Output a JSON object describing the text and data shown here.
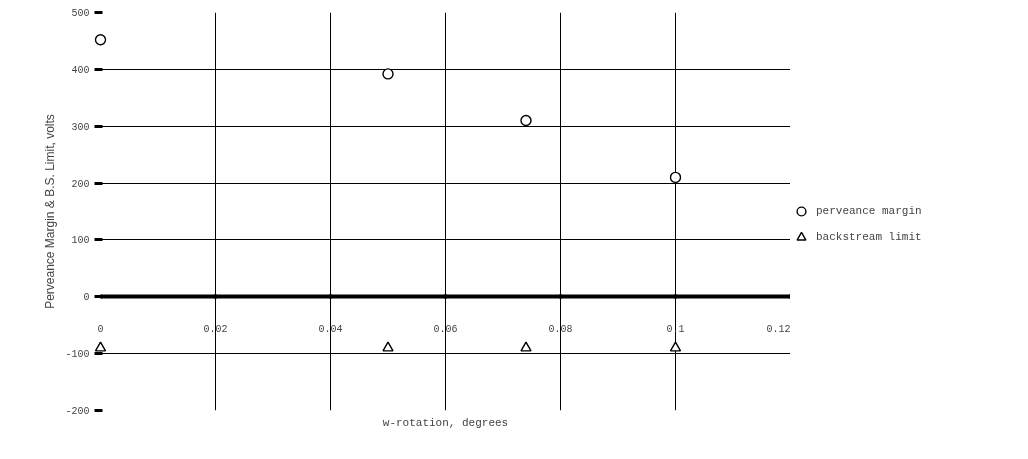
{
  "chart_data": {
    "type": "scatter",
    "xlabel": "w-rotation, degrees",
    "ylabel": "Perveance Margin & B.S. Limit, volts",
    "x": [
      0,
      0.05,
      0.074,
      0.1
    ],
    "series": [
      {
        "name": "perveance margin",
        "color": "#000000",
        "marker": "circle",
        "values": [
          452,
          392,
          310,
          210
        ]
      },
      {
        "name": "backstream limit",
        "color": "#000000",
        "marker": "triangle",
        "values": [
          -90,
          -90,
          -90,
          -90
        ]
      }
    ],
    "xlim": [
      0,
      0.12
    ],
    "xticks": [
      0,
      0.02,
      0.04,
      0.06,
      0.08,
      0.1,
      0.12
    ],
    "ylim": [
      -200,
      500
    ],
    "yticks": [
      -200,
      -100,
      0,
      100,
      200,
      300,
      400,
      500
    ],
    "grid": true,
    "legend": "right"
  }
}
